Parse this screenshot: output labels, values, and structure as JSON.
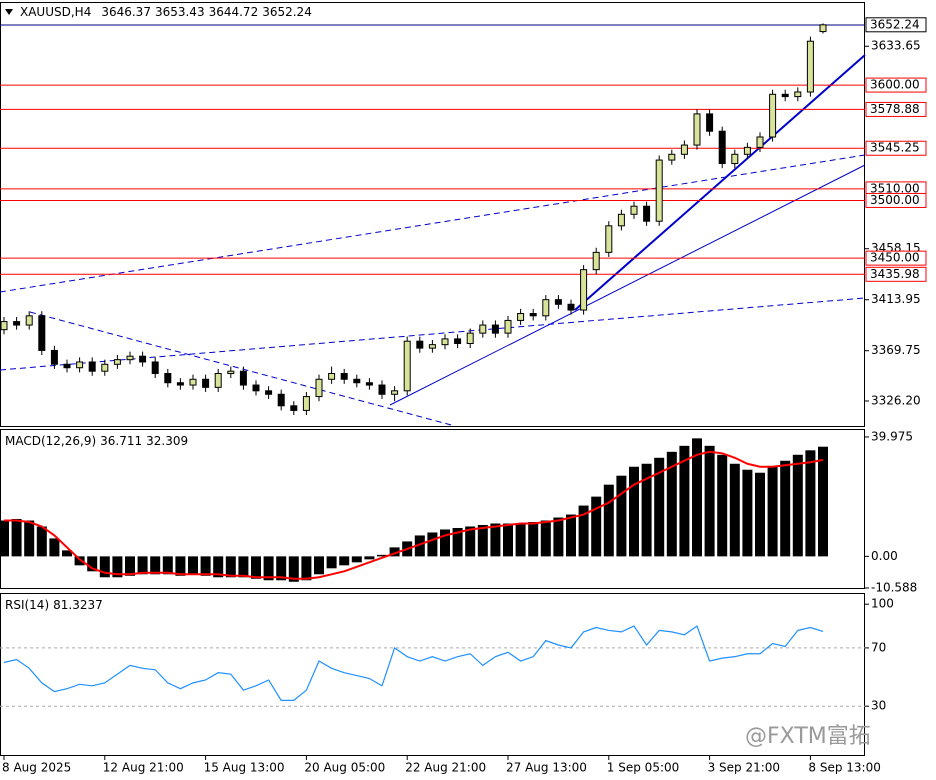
{
  "chart_data": [
    {
      "type": "candlestick",
      "title": "XAUUSD,H4",
      "open": [
        3388,
        3395,
        3392,
        3400,
        3370,
        3358,
        3355,
        3360,
        3352,
        3358,
        3362,
        3365,
        3360,
        3350,
        3342,
        3340,
        3345,
        3338,
        3350,
        3352,
        3340,
        3335,
        3332,
        3322,
        3318,
        3330,
        3345,
        3350,
        3345,
        3342,
        3340,
        3332,
        3335,
        3378,
        3372,
        3375,
        3380,
        3376,
        3385,
        3392,
        3385,
        3396,
        3402,
        3400,
        3414,
        3410,
        3405,
        3440,
        3455,
        3478,
        3488,
        3495,
        3482,
        3535,
        3540,
        3548,
        3575,
        3560,
        3532,
        3540,
        3546,
        3555,
        3592,
        3590,
        3594,
        3646.37
      ],
      "high": [
        3399,
        3399,
        3404,
        3404,
        3374,
        3362,
        3364,
        3364,
        3362,
        3366,
        3369,
        3369,
        3364,
        3354,
        3346,
        3349,
        3349,
        3354,
        3356,
        3356,
        3344,
        3339,
        3336,
        3326,
        3334,
        3349,
        3356,
        3354,
        3349,
        3346,
        3344,
        3339,
        3382,
        3382,
        3379,
        3384,
        3384,
        3389,
        3396,
        3396,
        3400,
        3406,
        3406,
        3418,
        3418,
        3414,
        3444,
        3459,
        3482,
        3492,
        3499,
        3499,
        3539,
        3544,
        3552,
        3579,
        3579,
        3564,
        3544,
        3550,
        3559,
        3596,
        3596,
        3598,
        3642,
        3653.43
      ],
      "low": [
        3384,
        3388,
        3388,
        3366,
        3354,
        3351,
        3351,
        3348,
        3348,
        3354,
        3358,
        3356,
        3346,
        3338,
        3336,
        3336,
        3334,
        3334,
        3346,
        3336,
        3331,
        3328,
        3318,
        3314,
        3314,
        3326,
        3341,
        3341,
        3338,
        3336,
        3328,
        3326,
        3331,
        3368,
        3368,
        3371,
        3372,
        3372,
        3381,
        3381,
        3381,
        3392,
        3396,
        3396,
        3406,
        3401,
        3401,
        3436,
        3451,
        3474,
        3484,
        3478,
        3478,
        3531,
        3536,
        3544,
        3556,
        3528,
        3528,
        3536,
        3542,
        3551,
        3586,
        3586,
        3590,
        3644.72
      ],
      "close": [
        3395,
        3392,
        3400,
        3370,
        3358,
        3355,
        3360,
        3352,
        3358,
        3362,
        3365,
        3360,
        3350,
        3342,
        3340,
        3345,
        3338,
        3350,
        3352,
        3340,
        3335,
        3332,
        3322,
        3318,
        3330,
        3345,
        3350,
        3345,
        3342,
        3340,
        3332,
        3335,
        3378,
        3372,
        3375,
        3380,
        3376,
        3385,
        3392,
        3385,
        3396,
        3402,
        3400,
        3414,
        3410,
        3405,
        3440,
        3455,
        3478,
        3488,
        3495,
        3482,
        3535,
        3540,
        3548,
        3575,
        3560,
        3532,
        3540,
        3546,
        3555,
        3592,
        3590,
        3594,
        3638,
        3652.24
      ],
      "up_color": "#d9e39a",
      "down_color": "#000000",
      "ylim": [
        3304.5,
        3672
      ],
      "yticks": [
        3633.65,
        3458.15,
        3413.95,
        3369.75,
        {
          "value": 3326.2,
          "label": "3326.20"
        }
      ],
      "levels": [
        {
          "value": 3600,
          "label": "3600.00"
        },
        3578.88,
        3545.25,
        {
          "value": 3510,
          "label": "3510.00"
        },
        {
          "value": 3500,
          "label": "3500.00"
        },
        {
          "value": 3450,
          "label": "3450.00"
        },
        3435.98
      ],
      "level_color": "#ff0000",
      "xticks": [
        {
          "value": 0,
          "label": "8 Aug 2025"
        },
        {
          "value": 8,
          "label": "12 Aug 21:00"
        },
        {
          "value": 16,
          "label": "15 Aug 13:00"
        },
        {
          "value": 24,
          "label": "20 Aug 05:00"
        },
        {
          "value": 32,
          "label": "22 Aug 21:00"
        },
        {
          "value": 40,
          "label": "27 Aug 13:00"
        },
        {
          "value": 48,
          "label": "1 Sep 05:00"
        },
        {
          "value": 56,
          "label": "3 Sep 21:00"
        },
        {
          "value": 64,
          "label": "8 Sep 13:00"
        }
      ]
    },
    {
      "type": "macd",
      "title": "MACD(12,26,9)",
      "histogram": [
        12,
        12.5,
        12,
        10,
        6,
        2,
        -3,
        -5,
        -7,
        -7,
        -6.5,
        -6,
        -6,
        -6,
        -6.5,
        -6,
        -6.5,
        -7,
        -7,
        -7,
        -7.5,
        -8,
        -8,
        -8.5,
        -8,
        -6,
        -4,
        -3,
        -2,
        -1,
        0.5,
        3,
        5,
        7,
        8,
        9,
        9.5,
        10,
        10.5,
        11,
        11,
        11,
        11.5,
        12,
        13,
        14,
        17,
        20,
        24,
        27,
        30,
        31,
        33,
        35,
        37,
        39.5,
        37,
        34,
        31,
        29,
        28,
        30,
        32,
        34,
        35.5,
        36.711
      ],
      "signal": [
        12,
        12,
        11.5,
        10,
        7,
        3,
        -1,
        -4,
        -5.5,
        -6,
        -6,
        -5.5,
        -5.5,
        -5.5,
        -6,
        -6,
        -6,
        -6,
        -6.5,
        -6.5,
        -7,
        -7,
        -7,
        -7.5,
        -7.5,
        -7,
        -6,
        -5,
        -3.5,
        -2,
        -0.5,
        1,
        2.5,
        4,
        5.5,
        7,
        8,
        9,
        9.5,
        10,
        10.5,
        11,
        11,
        11.5,
        12,
        13,
        14,
        16,
        18,
        21,
        24,
        26,
        28,
        30,
        32,
        34,
        35,
        34.5,
        33,
        31,
        30,
        30,
        30.5,
        31,
        31.5,
        32.309
      ],
      "bar_color": "#000000",
      "signal_color": "#ff0000",
      "ylim": [
        -10.588,
        42.3
      ],
      "yticks": [
        39.975,
        {
          "value": 0,
          "label": "0.00"
        },
        -10.588
      ]
    },
    {
      "type": "line",
      "title": "RSI(14)",
      "values": [
        60,
        62,
        56,
        46,
        40,
        42,
        45,
        44,
        46,
        52,
        58,
        56,
        55,
        46,
        42,
        46,
        48,
        53,
        52,
        41,
        44,
        48,
        34,
        34,
        41,
        61,
        56,
        53,
        51,
        49,
        44,
        70,
        64,
        61,
        64,
        61,
        64,
        66,
        58,
        64,
        67,
        61,
        64,
        75,
        72,
        70,
        81,
        84,
        82,
        81,
        85,
        72,
        82,
        81,
        79,
        85,
        61,
        63,
        64,
        66,
        66,
        73,
        71,
        82,
        84,
        81.3237
      ],
      "color": "#1e90ff",
      "ylim": [
        -3.5,
        107
      ],
      "yticks": [
        100,
        70,
        30
      ],
      "levels": [
        70,
        30
      ]
    }
  ],
  "watermark": "@FXTM富拓"
}
